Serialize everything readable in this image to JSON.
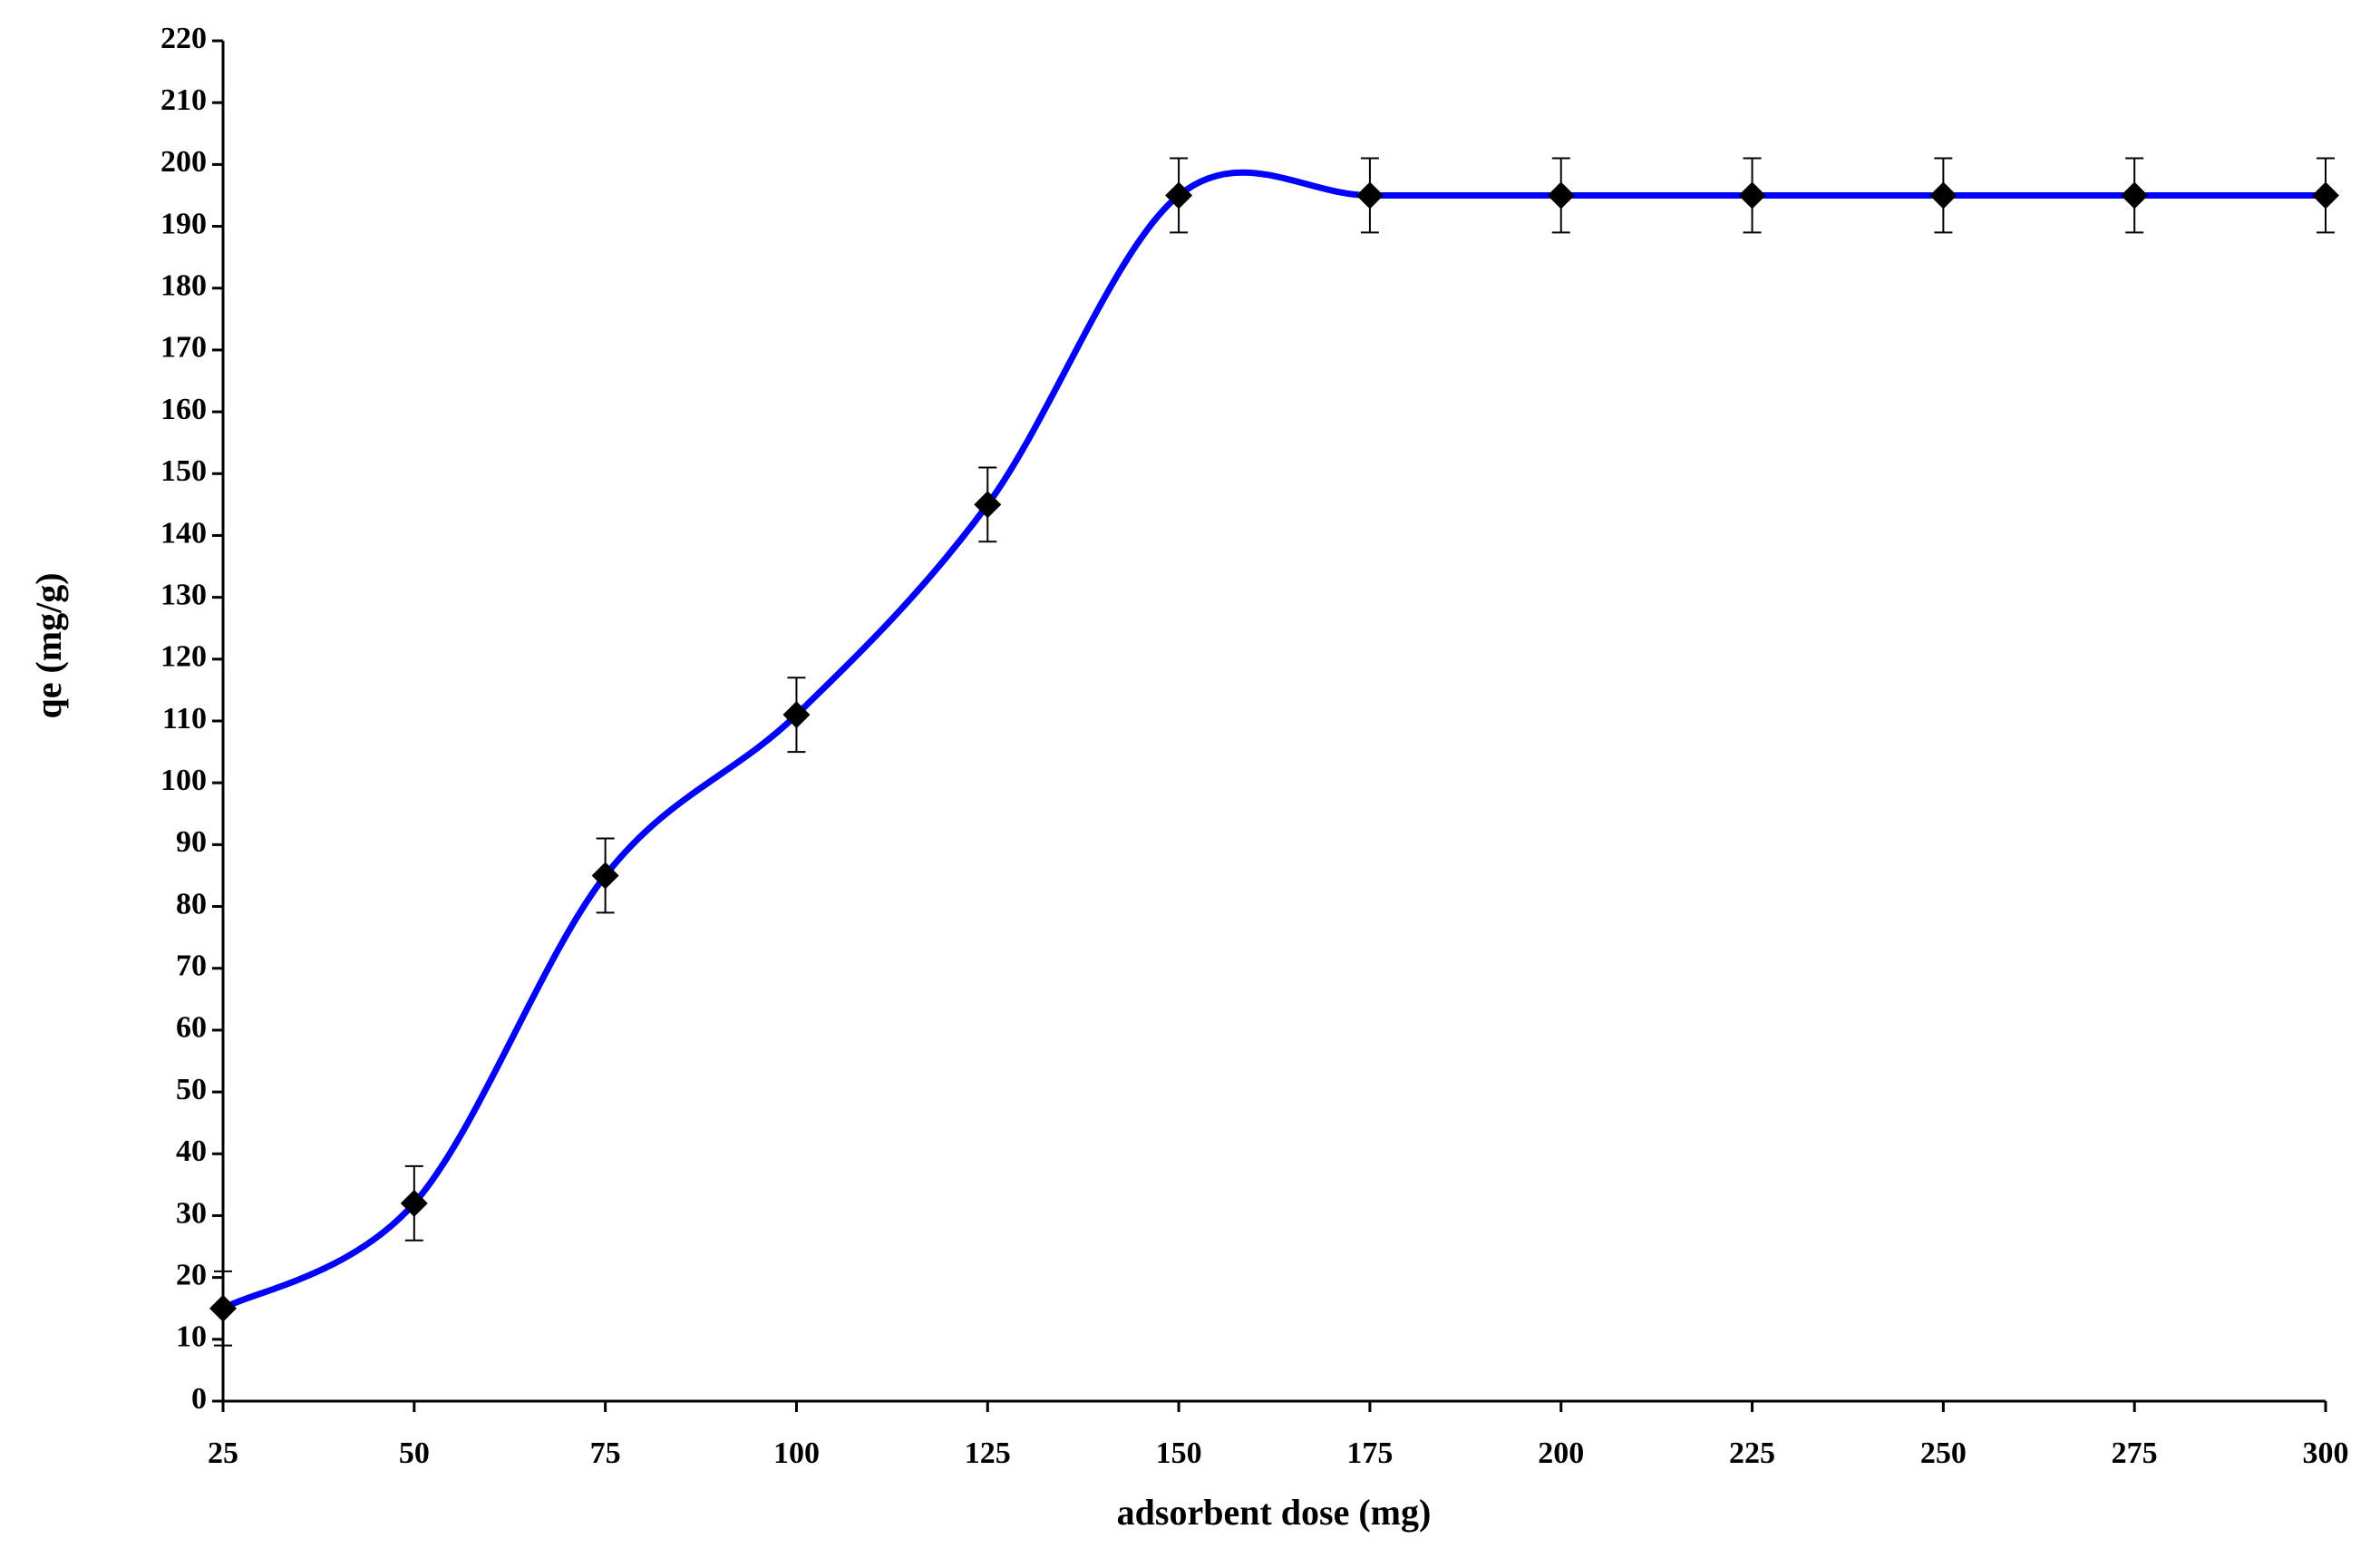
{
  "chart_data": {
    "type": "line",
    "x_label": "adsorbent dose (mg)",
    "y_label": "qe  (mg/g)",
    "x": [
      25,
      50,
      75,
      100,
      125,
      150,
      175,
      200,
      225,
      250,
      275,
      300
    ],
    "series": [
      {
        "color": "#0000ff",
        "marker_color": "#000000",
        "values": [
          15,
          32,
          85,
          111,
          145,
          195,
          195,
          195,
          195,
          195,
          195,
          195
        ],
        "errors": [
          6,
          6,
          6,
          6,
          6,
          6,
          6,
          6,
          6,
          6,
          6,
          6
        ]
      }
    ],
    "xlim": [
      25,
      300
    ],
    "xticks": [
      25,
      50,
      75,
      100,
      125,
      150,
      175,
      200,
      225,
      250,
      275,
      300
    ],
    "ylim": [
      0,
      220
    ],
    "yticks": [
      0,
      10,
      20,
      30,
      40,
      50,
      60,
      70,
      80,
      90,
      100,
      110,
      120,
      130,
      140,
      150,
      160,
      170,
      180,
      190,
      200,
      210,
      220
    ],
    "grid": false,
    "smooth": true
  }
}
